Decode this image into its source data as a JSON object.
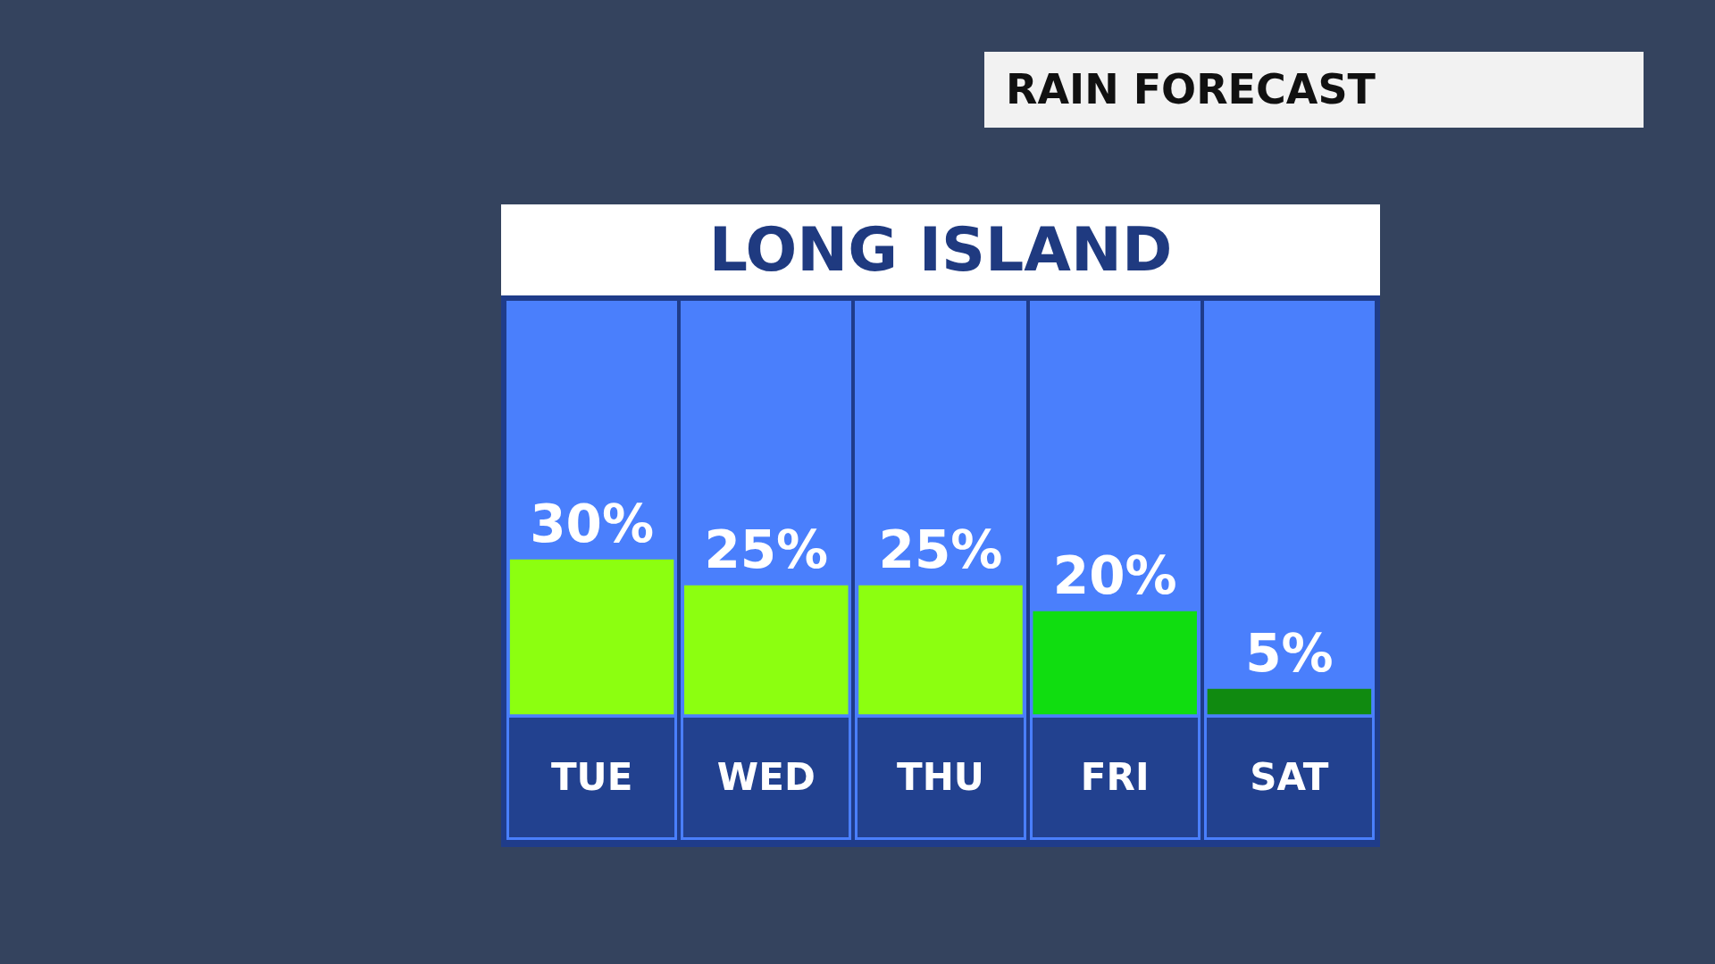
{
  "chart_data": {
    "type": "bar",
    "title": "RAIN FORECAST",
    "subtitle": "LONG ISLAND",
    "categories": [
      "TUE",
      "WED",
      "THU",
      "FRI",
      "SAT"
    ],
    "values": [
      30,
      25,
      25,
      20,
      5
    ],
    "colors": [
      "#8cff10",
      "#8cff10",
      "#8cff10",
      "#10dd10",
      "#108a10"
    ],
    "value_labels": [
      "30%",
      "25%",
      "25%",
      "20%",
      "5%"
    ],
    "tick_labels": "x",
    "grid": false,
    "legend": false
  }
}
